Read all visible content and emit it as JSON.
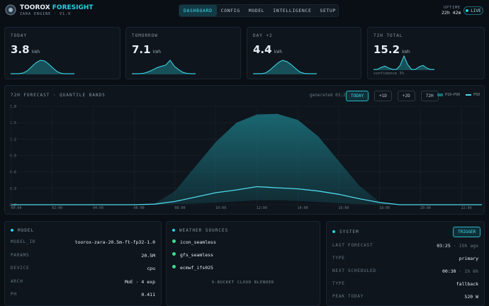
{
  "header": {
    "brand": "TOOROX",
    "brand_accent": "FORESIGHT",
    "subtitle": "ZARA ENGINE · V1.0",
    "nav": [
      "DASHBOARD",
      "CONFIG",
      "MODEL",
      "INTELLIGENCE",
      "SETUP"
    ],
    "uptime_label": "UPTIME",
    "uptime": "22h 42m",
    "live": "LIVE"
  },
  "cards": [
    {
      "label": "TODAY",
      "value": "3.8",
      "unit": "kWh",
      "spark": [
        0,
        0,
        0,
        0.05,
        0.2,
        0.45,
        0.7,
        0.85,
        0.8,
        0.6,
        0.35,
        0.12,
        0.02,
        0,
        0,
        0
      ]
    },
    {
      "label": "TOMORROW",
      "value": "7.1",
      "unit": "kWh",
      "spark": [
        0,
        0,
        0,
        0.05,
        0.15,
        0.3,
        0.45,
        0.55,
        0.65,
        1,
        0.55,
        0.3,
        0.1,
        0.02,
        0,
        0
      ]
    },
    {
      "label": "DAY +2",
      "value": "4.4",
      "unit": "kWh",
      "spark": [
        0,
        0,
        0,
        0.05,
        0.25,
        0.5,
        0.75,
        0.9,
        0.8,
        0.6,
        0.35,
        0.12,
        0.02,
        0,
        0,
        0
      ]
    },
    {
      "label": "72H TOTAL",
      "value": "15.2",
      "unit": "kWh",
      "spark": [
        0,
        0,
        0.15,
        0.25,
        0.1,
        0,
        0,
        0.3,
        1,
        0.35,
        0,
        0,
        0.2,
        0.3,
        0.1,
        0,
        0
      ],
      "note": "confidence 3%"
    }
  ],
  "forecast": {
    "type": "area",
    "title": "72H FORECAST · QUANTILE BANDS",
    "generated": "generated 03:25",
    "ranges": [
      "TODAY",
      "+1D",
      "+2D",
      "72H"
    ],
    "x": [
      0,
      1,
      2,
      3,
      4,
      5,
      6,
      7,
      8,
      9,
      10,
      11,
      12,
      13,
      14,
      15,
      16,
      17,
      18,
      19,
      20,
      21,
      22,
      23
    ],
    "series": [
      {
        "name": "P10–P90",
        "color": "#1b6f7a",
        "values": [
          0,
          0,
          0,
          0,
          0,
          0,
          0,
          0.02,
          0.25,
          0.7,
          1.15,
          1.5,
          1.65,
          1.66,
          1.55,
          1.25,
          0.8,
          0.35,
          0.05,
          0,
          0,
          0,
          0,
          0
        ],
        "lower": [
          0,
          0,
          0,
          0,
          0,
          0,
          0,
          0,
          0.01,
          0.02,
          0.04,
          0.06,
          0.08,
          0.08,
          0.07,
          0.05,
          0.03,
          0.01,
          0,
          0,
          0,
          0,
          0,
          0
        ]
      },
      {
        "name": "P50",
        "color": "#4fd8ea",
        "values": [
          0,
          0,
          0,
          0,
          0,
          0,
          0,
          0.01,
          0.06,
          0.14,
          0.22,
          0.27,
          0.33,
          0.31,
          0.29,
          0.25,
          0.19,
          0.11,
          0.04,
          0,
          0,
          0,
          0,
          0
        ]
      }
    ],
    "xlim": [
      0,
      23
    ],
    "ylim": [
      0,
      1.8
    ],
    "xticks": [
      {
        "value": 0,
        "label": "00:00"
      },
      {
        "value": 2,
        "label": "02:00"
      },
      {
        "value": 4,
        "label": "04:00"
      },
      {
        "value": 6,
        "label": "06:00"
      },
      {
        "value": 8,
        "label": "08:00"
      },
      {
        "value": 10,
        "label": "10:00"
      },
      {
        "value": 12,
        "label": "12:00"
      },
      {
        "value": 14,
        "label": "14:00"
      },
      {
        "value": 16,
        "label": "16:00"
      },
      {
        "value": 18,
        "label": "18:00"
      },
      {
        "value": 20,
        "label": "20:00"
      },
      {
        "value": 22,
        "label": "22:00"
      }
    ],
    "yticks": [
      {
        "value": 0,
        "label": "0.0"
      },
      0.3,
      0.6,
      0.9,
      1.2,
      1.5,
      1.8
    ],
    "grid": true
  },
  "model": {
    "title": "MODEL",
    "rows": [
      [
        "MODEL_ID",
        "toorox-zara-20.5m-ft-fp32-1.0"
      ],
      [
        "PARAMS",
        "20.5M"
      ],
      [
        "DEVICE",
        "cpu"
      ],
      [
        "ARCH",
        "MoE · 4 exp"
      ],
      [
        "PH",
        "0.411"
      ]
    ]
  },
  "weather": {
    "title": "WEATHER SOURCES",
    "sources": [
      "icon_seamless",
      "gfs_seamless",
      "ecmwf_ifs025"
    ],
    "footer": "9-BUCKET CLOUD BLENDER"
  },
  "system": {
    "title": "SYSTEM",
    "button": "TRIGGER",
    "rows": [
      [
        "LAST FORECAST",
        "03:25",
        "· 15h ago"
      ],
      [
        "TYPE",
        "primary",
        ""
      ],
      [
        "NEXT SCHEDULED",
        "00:30",
        "· 1h 6h"
      ],
      [
        "TYPE",
        "fallback",
        ""
      ],
      [
        "PEAK TODAY",
        "520 W",
        ""
      ]
    ]
  }
}
